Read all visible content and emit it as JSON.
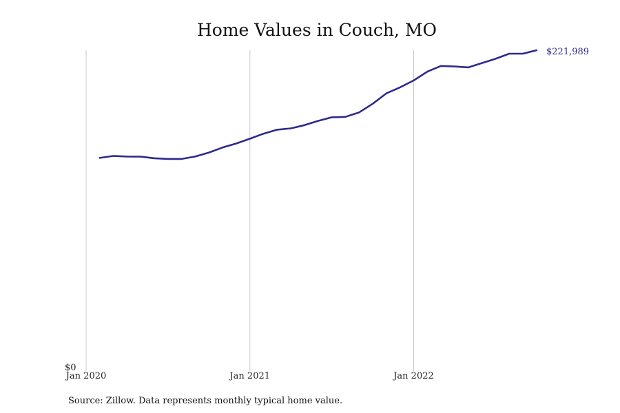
{
  "chart_data": {
    "type": "line",
    "title": "Home Values in Couch, MO",
    "source": "Source: Zillow. Data represents monthly typical home value.",
    "color": "#2e2a8c",
    "x_ticks": [
      {
        "label": "Jan 2020",
        "month": "2020-01"
      },
      {
        "label": "Jan 2021",
        "month": "2021-01"
      },
      {
        "label": "Jan 2022",
        "month": "2022-01"
      }
    ],
    "y_ticks": [
      {
        "label": "$0",
        "value": 0
      }
    ],
    "ylim": [
      0,
      222000
    ],
    "grid": "vertical",
    "end_label": "$221,989",
    "series": [
      {
        "x": [
          "2020-02",
          "2020-03",
          "2020-04",
          "2020-05",
          "2020-06",
          "2020-07",
          "2020-08",
          "2020-09",
          "2020-10",
          "2020-11",
          "2020-12",
          "2021-01",
          "2021-02",
          "2021-03",
          "2021-04",
          "2021-05",
          "2021-06",
          "2021-07",
          "2021-08",
          "2021-09",
          "2021-10",
          "2021-11",
          "2021-12",
          "2022-01",
          "2022-02",
          "2022-03",
          "2022-04",
          "2022-05",
          "2022-06",
          "2022-07",
          "2022-08",
          "2022-09",
          "2022-10"
        ],
        "values": [
          146500,
          147900,
          147500,
          147400,
          146300,
          145800,
          145800,
          147500,
          150300,
          153800,
          156600,
          160000,
          163500,
          166300,
          167200,
          169500,
          172500,
          175000,
          175300,
          178400,
          184500,
          191800,
          196000,
          200800,
          207000,
          211000,
          210600,
          210000,
          213000,
          216000,
          219600,
          219600,
          221989
        ]
      }
    ]
  }
}
